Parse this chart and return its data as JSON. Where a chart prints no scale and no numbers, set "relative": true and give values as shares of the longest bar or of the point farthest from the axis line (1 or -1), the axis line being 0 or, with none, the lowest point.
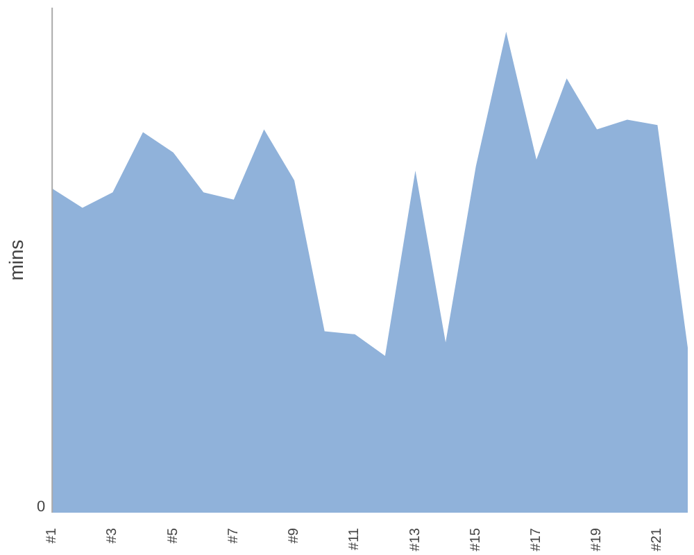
{
  "chart_data": {
    "type": "area",
    "ylabel": "mins",
    "relative": true,
    "annotations": [
      "0"
    ],
    "categories": [
      "#1",
      null,
      "#3",
      null,
      "#5",
      null,
      "#7",
      null,
      "#9",
      null,
      "#11",
      null,
      "#13",
      null,
      "#15",
      null,
      "#17",
      null,
      "#19",
      null,
      "#21",
      null
    ],
    "series": [
      {
        "color": "#90b2da",
        "values": [
          0.674,
          0.634,
          0.666,
          0.791,
          0.749,
          0.666,
          0.651,
          0.797,
          0.691,
          0.377,
          0.371,
          0.326,
          0.711,
          0.354,
          0.72,
          1,
          0.734,
          0.903,
          0.797,
          0.817,
          0.806,
          0.343
        ]
      }
    ]
  }
}
